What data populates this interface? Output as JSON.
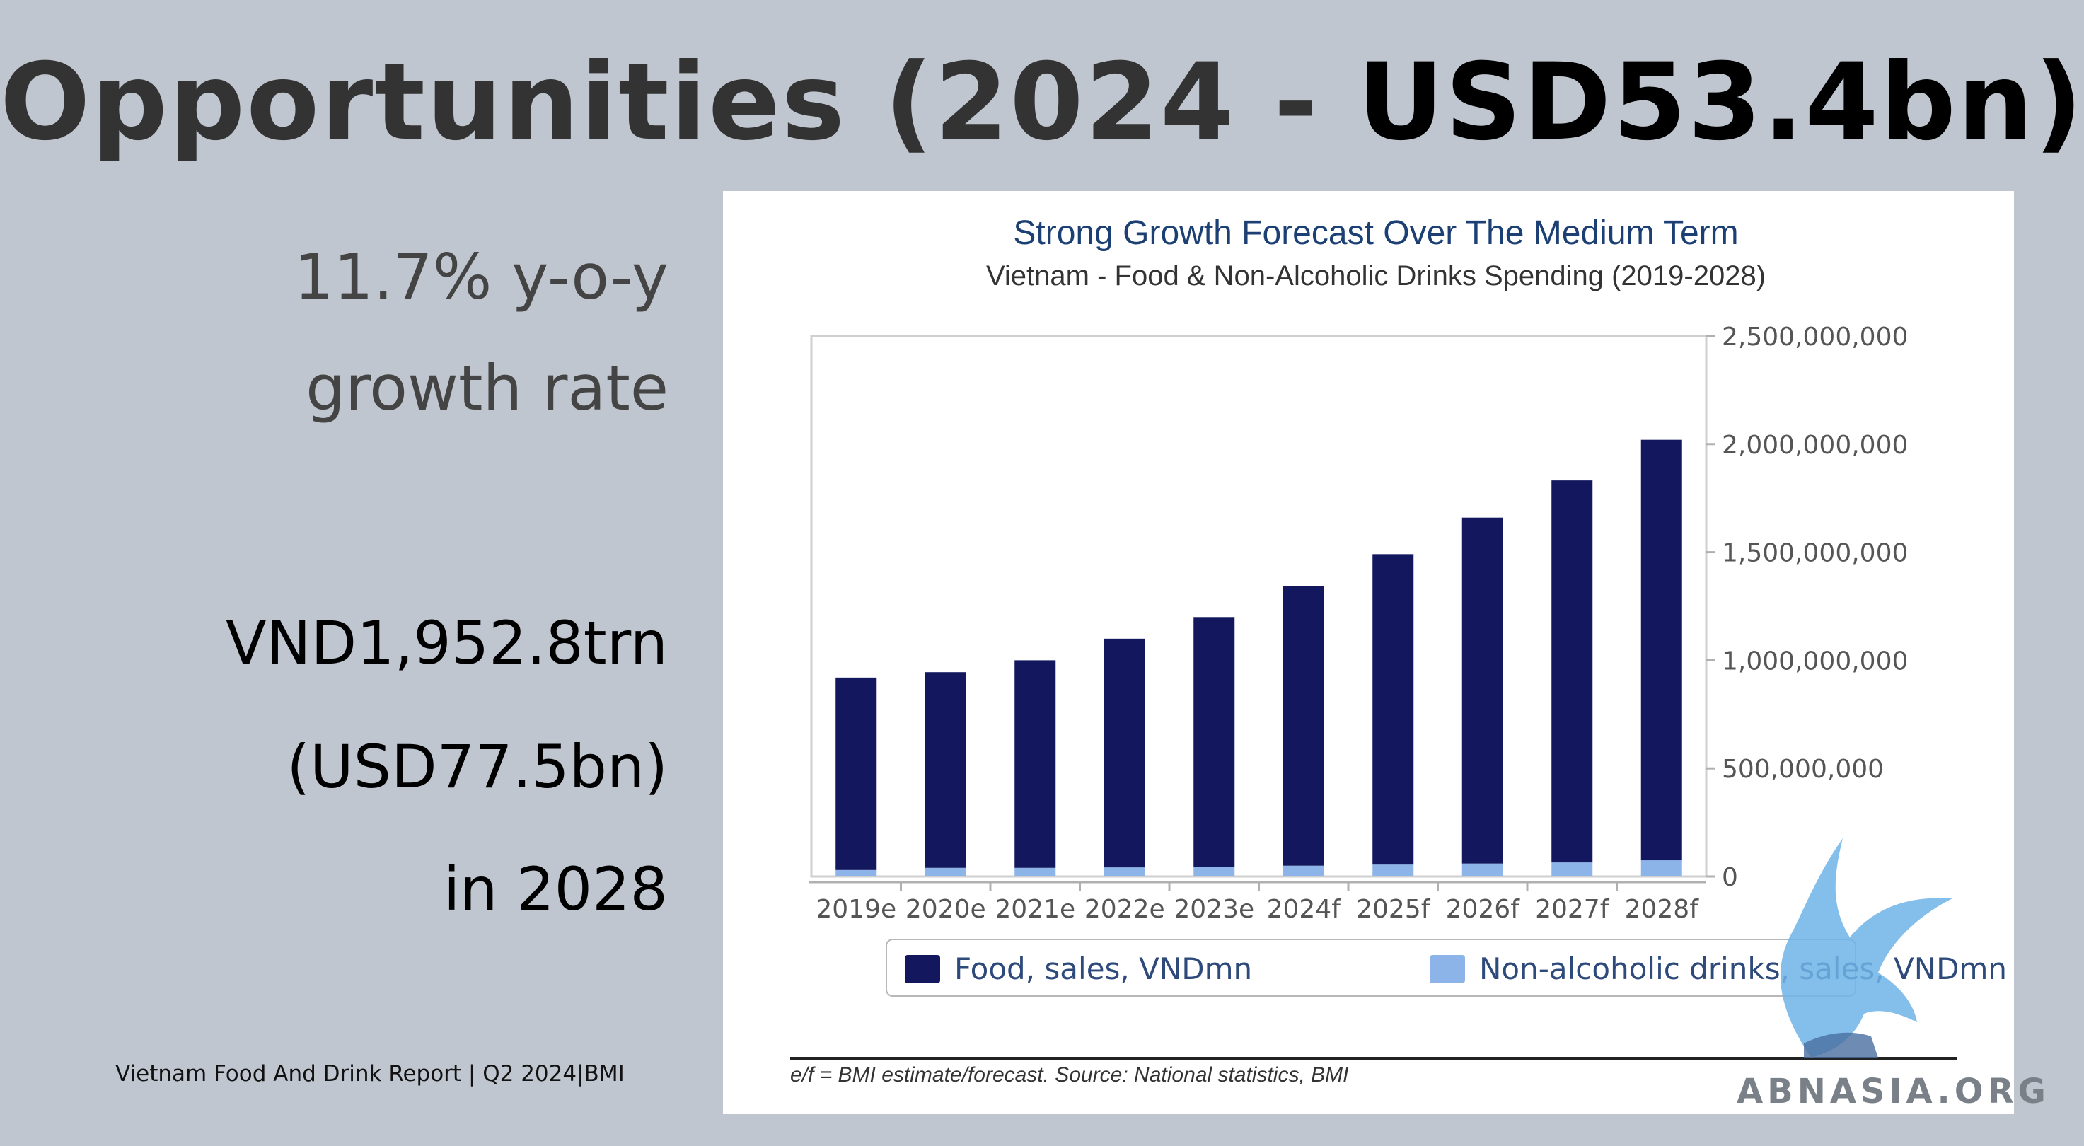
{
  "slide": {
    "title_part1": "Opportunities (2024 - ",
    "title_part2": "USD53.4bn)",
    "stat_growth_line1": "11.7% y-o-y",
    "stat_growth_line2": "growth rate",
    "stat_value_line1": "VND1,952.8trn",
    "stat_value_line2": "(USD77.5bn)",
    "stat_value_line3": "in 2028",
    "footer": "Vietnam Food And Drink Report | Q2 2024|BMI"
  },
  "watermark": {
    "text": "ABNASIA.ORG",
    "icon": "griffin-logo-icon"
  },
  "chart_data": {
    "type": "bar",
    "stacked": true,
    "title": "Strong Growth Forecast Over The Medium Term",
    "subtitle": "Vietnam - Food & Non-Alcoholic Drinks Spending (2019-2028)",
    "categories": [
      "2019e",
      "2020e",
      "2021e",
      "2022e",
      "2023e",
      "2024f",
      "2025f",
      "2026f",
      "2027f",
      "2028f"
    ],
    "series": [
      {
        "name": "Non-alcoholic drinks, sales, VNDmn",
        "color": "#8cb4e8",
        "values": [
          30000000,
          40000000,
          40000000,
          42000000,
          45000000,
          50000000,
          55000000,
          60000000,
          65000000,
          75000000
        ]
      },
      {
        "name": "Food, sales, VNDmn",
        "color": "#12175e",
        "values": [
          890000000,
          905000000,
          960000000,
          1058000000,
          1155000000,
          1292000000,
          1436000000,
          1600000000,
          1767000000,
          1945000000
        ]
      }
    ],
    "ylim": [
      0,
      2500000000
    ],
    "yticks": [
      "0",
      "500,000,000",
      "1,000,000,000",
      "1,500,000,000",
      "2,000,000,000",
      "2,500,000,000"
    ],
    "ytick_values": [
      0,
      500000000,
      1000000000,
      1500000000,
      2000000000,
      2500000000
    ],
    "y_axis_side": "right",
    "legend_position": "bottom",
    "grid": false,
    "source_note": "e/f = BMI estimate/forecast. Source: National statistics, BMI"
  }
}
